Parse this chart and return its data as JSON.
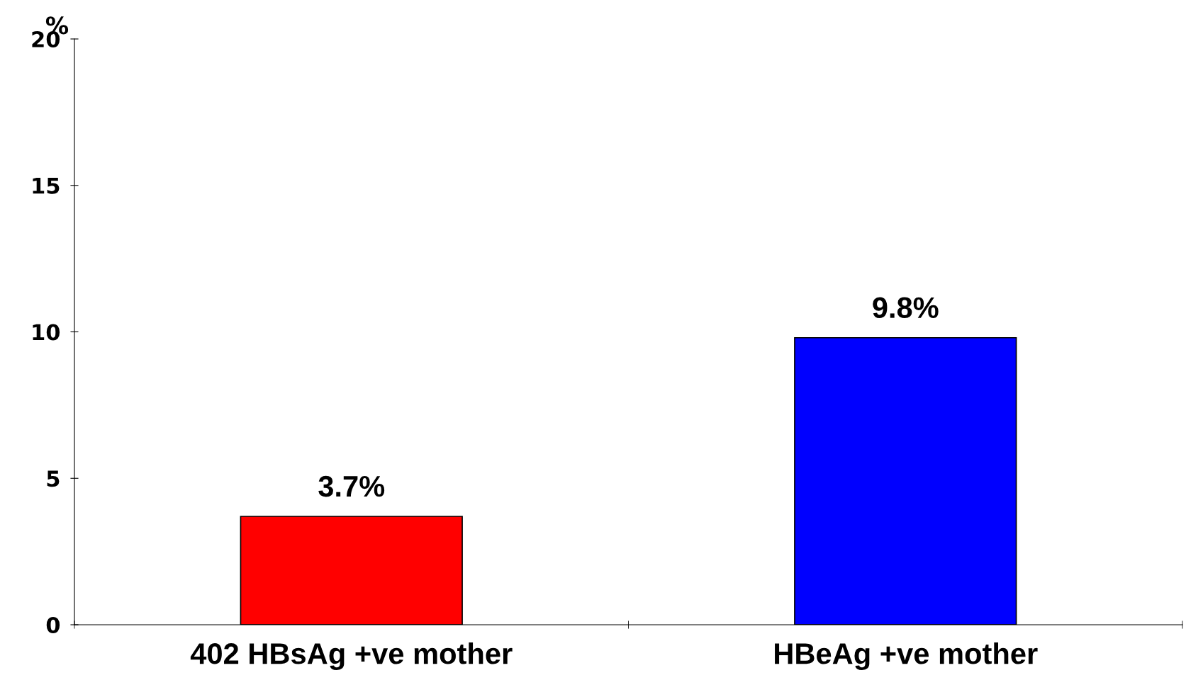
{
  "chart_data": {
    "type": "bar",
    "ylabel": "%",
    "categories": [
      "402 HBsAg +ve mother",
      "HBeAg +ve mother"
    ],
    "values": [
      3.7,
      9.8
    ],
    "colors": [
      "#ff0000",
      "#0000ff"
    ],
    "value_labels": [
      "3.7%",
      "9.8%"
    ],
    "ylim": [
      0,
      20
    ],
    "yticks": [
      0,
      5,
      10,
      15,
      20
    ],
    "grid": false,
    "legend": false
  }
}
